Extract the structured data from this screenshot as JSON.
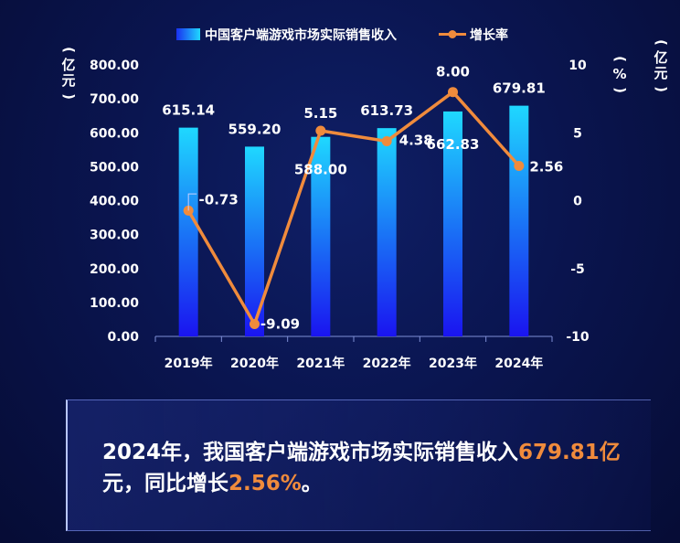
{
  "chart_data": {
    "type": "bar+line",
    "categories": [
      "2019年",
      "2020年",
      "2021年",
      "2022年",
      "2023年",
      "2024年"
    ],
    "bar_series": {
      "name": "中国客户端游戏市场实际销售收入",
      "values": [
        615.14,
        559.2,
        588.0,
        613.73,
        662.83,
        679.81
      ]
    },
    "line_series": {
      "name": "增长率",
      "values": [
        -0.73,
        -9.09,
        5.15,
        4.38,
        8.0,
        2.56
      ]
    },
    "bar_labels": [
      "615.14",
      "559.20",
      "588.00",
      "613.73",
      "662.83",
      "679.81"
    ],
    "line_labels": [
      "-0.73",
      "-9.09",
      "5.15",
      "4.38",
      "8.00",
      "2.56"
    ],
    "y_left": {
      "ticks": [
        "0.00",
        "100.00",
        "200.00",
        "300.00",
        "400.00",
        "500.00",
        "600.00",
        "700.00",
        "800.00"
      ],
      "ylim": [
        0,
        800
      ]
    },
    "y_right": {
      "ticks": [
        "-10",
        "-5",
        "0",
        "5",
        "10"
      ],
      "ylim": [
        -10,
        10
      ]
    },
    "legend_position": "top",
    "colors": {
      "bar_top": "#1fd8ff",
      "bar_bottom": "#1a14f0",
      "line": "#f08b3c"
    }
  },
  "units": {
    "left": [
      "(",
      "亿",
      "元",
      ")"
    ],
    "right_pct": [
      "(",
      "%",
      ")"
    ],
    "right_yi": [
      "(",
      "亿",
      "元",
      ")"
    ]
  },
  "summary": {
    "part1": "2024年，我国客户端游戏市场实际销售收入",
    "hl1": "679.81亿",
    "part2": "元，同比增长",
    "hl2": "2.56%",
    "part3": "。"
  }
}
